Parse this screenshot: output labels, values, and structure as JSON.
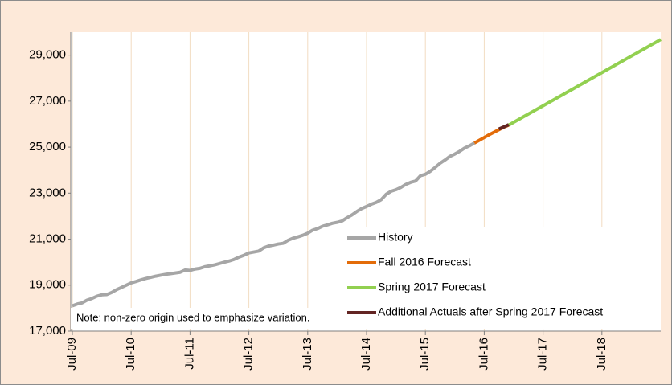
{
  "chart_data": {
    "type": "line",
    "annotation": "Note: non-zero origin used to emphasize variation.",
    "categories": [
      "Jul-09",
      null,
      null,
      null,
      null,
      null,
      null,
      null,
      null,
      null,
      null,
      null,
      "Jul-10",
      null,
      null,
      null,
      null,
      null,
      null,
      null,
      null,
      null,
      null,
      null,
      "Jul-11",
      null,
      null,
      null,
      null,
      null,
      null,
      null,
      null,
      null,
      null,
      null,
      "Jul-12",
      null,
      null,
      null,
      null,
      null,
      null,
      null,
      null,
      null,
      null,
      null,
      "Jul-13",
      null,
      null,
      null,
      null,
      null,
      null,
      null,
      null,
      null,
      null,
      null,
      "Jul-14",
      null,
      null,
      null,
      null,
      null,
      null,
      null,
      null,
      null,
      null,
      null,
      "Jul-15",
      null,
      null,
      null,
      null,
      null,
      null,
      null,
      null,
      null,
      null,
      null,
      "Jul-16",
      null,
      null,
      null,
      null,
      null,
      null,
      null,
      null,
      null,
      null,
      null,
      "Jul-17",
      null,
      null,
      null,
      null,
      null,
      null,
      null,
      null,
      null,
      null,
      null,
      "Jul-18",
      null,
      null,
      null,
      null,
      null,
      null,
      null,
      null,
      null,
      null,
      null,
      null
    ],
    "series": [
      {
        "name": "History",
        "color": "#a6a6a6",
        "values": [
          18100,
          18180,
          18230,
          18350,
          18420,
          18520,
          18580,
          18590,
          18680,
          18800,
          18900,
          19000,
          19100,
          19160,
          19230,
          19290,
          19340,
          19390,
          19430,
          19470,
          19500,
          19530,
          19560,
          19660,
          19640,
          19700,
          19730,
          19800,
          19840,
          19880,
          19940,
          20000,
          20050,
          20120,
          20220,
          20300,
          20400,
          20440,
          20480,
          20620,
          20700,
          20740,
          20790,
          20820,
          20950,
          21040,
          21100,
          21170,
          21260,
          21390,
          21460,
          21560,
          21620,
          21690,
          21730,
          21790,
          21930,
          22050,
          22200,
          22330,
          22420,
          22520,
          22600,
          22720,
          22950,
          23080,
          23150,
          23250,
          23380,
          23470,
          23530,
          23760,
          23820,
          23950,
          24120,
          24300,
          24440,
          24600,
          24700,
          24820,
          24960,
          25060,
          25180,
          null,
          null,
          null,
          null,
          null,
          null,
          null,
          null,
          null,
          null,
          null,
          null,
          null,
          null,
          null,
          null,
          null,
          null,
          null,
          null,
          null,
          null,
          null,
          null,
          null,
          null,
          null,
          null,
          null,
          null,
          null,
          null,
          null,
          null,
          null,
          null,
          null,
          null
        ]
      },
      {
        "name": "Fall 2016 Forecast",
        "color": "#e36c09",
        "values": [
          null,
          null,
          null,
          null,
          null,
          null,
          null,
          null,
          null,
          null,
          null,
          null,
          null,
          null,
          null,
          null,
          null,
          null,
          null,
          null,
          null,
          null,
          null,
          null,
          null,
          null,
          null,
          null,
          null,
          null,
          null,
          null,
          null,
          null,
          null,
          null,
          null,
          null,
          null,
          null,
          null,
          null,
          null,
          null,
          null,
          null,
          null,
          null,
          null,
          null,
          null,
          null,
          null,
          null,
          null,
          null,
          null,
          null,
          null,
          null,
          null,
          null,
          null,
          null,
          null,
          null,
          null,
          null,
          null,
          null,
          null,
          null,
          null,
          null,
          null,
          null,
          null,
          null,
          null,
          null,
          null,
          null,
          25180,
          25300,
          25420,
          25540,
          25650,
          25760,
          25870,
          25960,
          null,
          null,
          null,
          null,
          null,
          null,
          null,
          null,
          null,
          null,
          null,
          null,
          null,
          null,
          null,
          null,
          null,
          null,
          null,
          null,
          null,
          null,
          null,
          null,
          null,
          null,
          null,
          null,
          null,
          null,
          null
        ]
      },
      {
        "name": "Spring 2017 Forecast",
        "color": "#92d050",
        "values": [
          null,
          null,
          null,
          null,
          null,
          null,
          null,
          null,
          null,
          null,
          null,
          null,
          null,
          null,
          null,
          null,
          null,
          null,
          null,
          null,
          null,
          null,
          null,
          null,
          null,
          null,
          null,
          null,
          null,
          null,
          null,
          null,
          null,
          null,
          null,
          null,
          null,
          null,
          null,
          null,
          null,
          null,
          null,
          null,
          null,
          null,
          null,
          null,
          null,
          null,
          null,
          null,
          null,
          null,
          null,
          null,
          null,
          null,
          null,
          null,
          null,
          null,
          null,
          null,
          null,
          null,
          null,
          null,
          null,
          null,
          null,
          null,
          null,
          null,
          null,
          null,
          null,
          null,
          null,
          null,
          null,
          null,
          null,
          null,
          null,
          null,
          null,
          null,
          null,
          25960,
          26080,
          26200,
          26320,
          26440,
          26560,
          26680,
          26800,
          26920,
          27040,
          27160,
          27280,
          27400,
          27520,
          27640,
          27760,
          27880,
          28000,
          28120,
          28240,
          28360,
          28480,
          28600,
          28720,
          28840,
          28960,
          29080,
          29200,
          29320,
          29440,
          29560,
          29680
        ]
      },
      {
        "name": "Additional Actuals after Spring 2017 Forecast",
        "color": "#632523",
        "values": [
          null,
          null,
          null,
          null,
          null,
          null,
          null,
          null,
          null,
          null,
          null,
          null,
          null,
          null,
          null,
          null,
          null,
          null,
          null,
          null,
          null,
          null,
          null,
          null,
          null,
          null,
          null,
          null,
          null,
          null,
          null,
          null,
          null,
          null,
          null,
          null,
          null,
          null,
          null,
          null,
          null,
          null,
          null,
          null,
          null,
          null,
          null,
          null,
          null,
          null,
          null,
          null,
          null,
          null,
          null,
          null,
          null,
          null,
          null,
          null,
          null,
          null,
          null,
          null,
          null,
          null,
          null,
          null,
          null,
          null,
          null,
          null,
          null,
          null,
          null,
          null,
          null,
          null,
          null,
          null,
          null,
          null,
          null,
          null,
          null,
          null,
          null,
          25790,
          25880,
          25980,
          null,
          null,
          null,
          null,
          null,
          null,
          null,
          null,
          null,
          null,
          null,
          null,
          null,
          null,
          null,
          null,
          null,
          null,
          null,
          null,
          null,
          null,
          null,
          null,
          null,
          null,
          null,
          null,
          null,
          null,
          null
        ]
      }
    ],
    "ylim": [
      17000,
      30000
    ],
    "yticks": [
      {
        "value": 17000,
        "label": "17,000"
      },
      {
        "value": 19000,
        "label": "19,000"
      },
      {
        "value": 21000,
        "label": "21,000"
      },
      {
        "value": 23000,
        "label": "23,000"
      },
      {
        "value": 25000,
        "label": "25,000"
      },
      {
        "value": 27000,
        "label": "27,000"
      },
      {
        "value": 29000,
        "label": "29,000"
      }
    ],
    "grid": "x",
    "legend": "lower right"
  }
}
